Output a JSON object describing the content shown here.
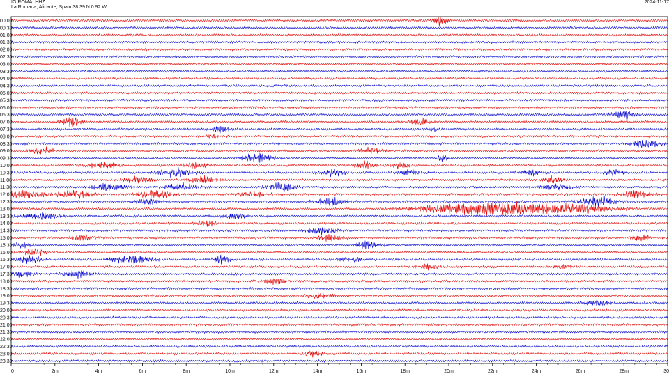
{
  "header": {
    "station": "IG.ROMA..HHZ",
    "location": "La Romana, Alicante, Spain  38.39 N 0.92 W",
    "date": "2024-11-17"
  },
  "colors": {
    "red": "#e00000",
    "blue": "#0000cc",
    "axis": "#000000"
  },
  "chart_data": {
    "type": "line",
    "title": "IG.ROMA..HHZ",
    "subtitle": "La Romana, Alicante, Spain  38.39 N 0.92 W",
    "xlabel": "",
    "ylabel": "",
    "xlim": [
      0,
      30
    ],
    "x_unit": "minutes",
    "x_ticks": [
      "0",
      "2m",
      "4m",
      "6m",
      "8m",
      "10m",
      "12m",
      "14m",
      "16m",
      "18m",
      "20m",
      "22m",
      "24m",
      "26m",
      "28m",
      "30"
    ],
    "row_interval_minutes": 30,
    "row_labels": [
      "00:00",
      "00:30",
      "01:00",
      "01:30",
      "02:00",
      "02:30",
      "03:00",
      "03:30",
      "04:00",
      "04:30",
      "05:00",
      "05:30",
      "06:00",
      "06:30",
      "07:00",
      "07:30",
      "08:00",
      "08:30",
      "09:00",
      "09:30",
      "10:00",
      "10:30",
      "11:00",
      "11:30",
      "12:00",
      "12:30",
      "13:00",
      "13:30",
      "14:00",
      "14:30",
      "15:00",
      "15:30",
      "16:00",
      "16:30",
      "17:00",
      "17:30",
      "18:00",
      "18:30",
      "19:00",
      "19:30",
      "20:00",
      "20:30",
      "21:00",
      "21:30",
      "22:00",
      "22:30",
      "23:00",
      "23:30"
    ],
    "row_colors": [
      "red",
      "blue"
    ],
    "events": [
      {
        "row": 0,
        "minute": 19.6,
        "width": 0.5,
        "amp": 1.3
      },
      {
        "row": 14,
        "minute": 2.8,
        "width": 0.7,
        "amp": 1.4
      },
      {
        "row": 14,
        "minute": 18.7,
        "width": 0.6,
        "amp": 1.0
      },
      {
        "row": 13,
        "minute": 28.0,
        "width": 0.8,
        "amp": 1.1
      },
      {
        "row": 15,
        "minute": 9.6,
        "width": 0.6,
        "amp": 1.0
      },
      {
        "row": 15,
        "minute": 19.3,
        "width": 0.3,
        "amp": 0.9
      },
      {
        "row": 16,
        "minute": 9.2,
        "width": 0.3,
        "amp": 0.8
      },
      {
        "row": 17,
        "minute": 29.0,
        "width": 1.0,
        "amp": 1.1
      },
      {
        "row": 18,
        "minute": 1.4,
        "width": 0.9,
        "amp": 0.9
      },
      {
        "row": 18,
        "minute": 16.5,
        "width": 0.9,
        "amp": 0.9
      },
      {
        "row": 19,
        "minute": 11.2,
        "width": 1.0,
        "amp": 1.3
      },
      {
        "row": 19,
        "minute": 19.7,
        "width": 0.4,
        "amp": 0.9
      },
      {
        "row": 20,
        "minute": 4.2,
        "width": 1.0,
        "amp": 1.0
      },
      {
        "row": 20,
        "minute": 8.5,
        "width": 0.9,
        "amp": 0.8
      },
      {
        "row": 20,
        "minute": 16.2,
        "width": 0.7,
        "amp": 1.0
      },
      {
        "row": 20,
        "minute": 17.8,
        "width": 0.6,
        "amp": 0.9
      },
      {
        "row": 21,
        "minute": 7.5,
        "width": 1.2,
        "amp": 1.3
      },
      {
        "row": 21,
        "minute": 14.8,
        "width": 0.8,
        "amp": 1.0
      },
      {
        "row": 21,
        "minute": 18.2,
        "width": 0.7,
        "amp": 1.0
      },
      {
        "row": 21,
        "minute": 23.8,
        "width": 0.8,
        "amp": 0.9
      },
      {
        "row": 21,
        "minute": 27.6,
        "width": 0.7,
        "amp": 0.9
      },
      {
        "row": 22,
        "minute": 5.8,
        "width": 1.0,
        "amp": 0.9
      },
      {
        "row": 22,
        "minute": 8.8,
        "width": 1.0,
        "amp": 1.0
      },
      {
        "row": 22,
        "minute": 24.8,
        "width": 0.7,
        "amp": 1.0
      },
      {
        "row": 23,
        "minute": 4.5,
        "width": 1.2,
        "amp": 1.1
      },
      {
        "row": 23,
        "minute": 7.7,
        "width": 1.0,
        "amp": 1.0
      },
      {
        "row": 23,
        "minute": 12.3,
        "width": 0.9,
        "amp": 1.3
      },
      {
        "row": 23,
        "minute": 24.9,
        "width": 1.0,
        "amp": 1.0
      },
      {
        "row": 24,
        "minute": 0.6,
        "width": 1.5,
        "amp": 1.1
      },
      {
        "row": 24,
        "minute": 3.0,
        "width": 1.2,
        "amp": 1.0
      },
      {
        "row": 24,
        "minute": 6.6,
        "width": 1.2,
        "amp": 1.2
      },
      {
        "row": 24,
        "minute": 11.0,
        "width": 1.0,
        "amp": 0.8
      },
      {
        "row": 24,
        "minute": 28.6,
        "width": 1.0,
        "amp": 0.9
      },
      {
        "row": 25,
        "minute": 6.2,
        "width": 0.8,
        "amp": 1.0
      },
      {
        "row": 25,
        "minute": 14.6,
        "width": 1.0,
        "amp": 1.2
      },
      {
        "row": 25,
        "minute": 26.8,
        "width": 1.3,
        "amp": 1.4
      },
      {
        "row": 26,
        "minute": 22.0,
        "width": 4.5,
        "amp": 1.8
      },
      {
        "row": 26,
        "minute": 26.0,
        "width": 2.5,
        "amp": 0.9
      },
      {
        "row": 27,
        "minute": 1.5,
        "width": 1.5,
        "amp": 0.9
      },
      {
        "row": 27,
        "minute": 10.2,
        "width": 0.8,
        "amp": 0.9
      },
      {
        "row": 28,
        "minute": 8.9,
        "width": 0.6,
        "amp": 1.0
      },
      {
        "row": 29,
        "minute": 14.2,
        "width": 1.0,
        "amp": 1.0
      },
      {
        "row": 30,
        "minute": 3.3,
        "width": 0.8,
        "amp": 0.8
      },
      {
        "row": 30,
        "minute": 14.5,
        "width": 0.8,
        "amp": 0.9
      },
      {
        "row": 30,
        "minute": 28.8,
        "width": 0.6,
        "amp": 1.0
      },
      {
        "row": 31,
        "minute": 0.5,
        "width": 0.7,
        "amp": 0.8
      },
      {
        "row": 31,
        "minute": 16.3,
        "width": 0.8,
        "amp": 1.0
      },
      {
        "row": 32,
        "minute": 1.1,
        "width": 0.7,
        "amp": 1.0
      },
      {
        "row": 33,
        "minute": 0.8,
        "width": 1.0,
        "amp": 1.0
      },
      {
        "row": 33,
        "minute": 5.5,
        "width": 1.4,
        "amp": 1.2
      },
      {
        "row": 33,
        "minute": 9.6,
        "width": 0.6,
        "amp": 1.1
      },
      {
        "row": 33,
        "minute": 15.5,
        "width": 0.8,
        "amp": 0.8
      },
      {
        "row": 34,
        "minute": 19.0,
        "width": 1.0,
        "amp": 0.7
      },
      {
        "row": 34,
        "minute": 25.2,
        "width": 0.7,
        "amp": 0.8
      },
      {
        "row": 35,
        "minute": 3.0,
        "width": 1.0,
        "amp": 1.0
      },
      {
        "row": 35,
        "minute": 0.5,
        "width": 0.8,
        "amp": 0.8
      },
      {
        "row": 36,
        "minute": 12.1,
        "width": 0.8,
        "amp": 1.0
      },
      {
        "row": 38,
        "minute": 14.2,
        "width": 1.0,
        "amp": 0.8
      },
      {
        "row": 39,
        "minute": 26.8,
        "width": 0.9,
        "amp": 0.8
      },
      {
        "row": 46,
        "minute": 13.8,
        "width": 0.6,
        "amp": 1.0
      }
    ]
  }
}
